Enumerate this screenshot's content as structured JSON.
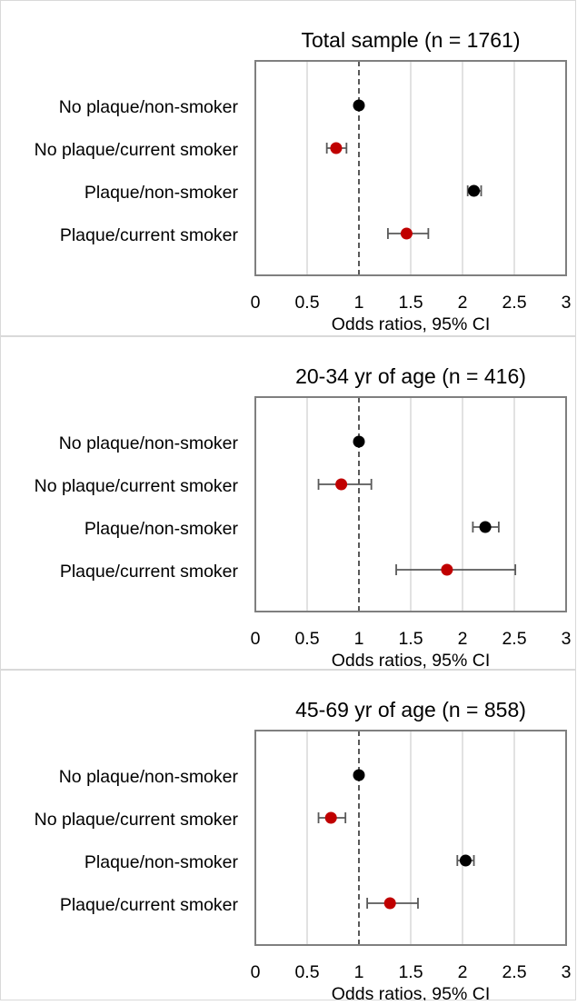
{
  "chart_data": [
    {
      "type": "scatter",
      "title": "Total sample (n = 1761)",
      "xlabel": "Odds ratios, 95% CI",
      "xlim": [
        0,
        3
      ],
      "xticks": [
        "0",
        "0.5",
        "1",
        "1.5",
        "2",
        "2.5",
        "3"
      ],
      "reference_line": 1,
      "grid": true,
      "rows": [
        {
          "label": "No plaque/non-smoker",
          "or": 1.0,
          "ci_low": 1.0,
          "ci_high": 1.0,
          "color": "#000000"
        },
        {
          "label": "No plaque/current smoker",
          "or": 0.78,
          "ci_low": 0.69,
          "ci_high": 0.88,
          "color": "#c00000"
        },
        {
          "label": "Plaque/non-smoker",
          "or": 2.11,
          "ci_low": 2.05,
          "ci_high": 2.18,
          "color": "#000000"
        },
        {
          "label": "Plaque/current smoker",
          "or": 1.46,
          "ci_low": 1.28,
          "ci_high": 1.67,
          "color": "#c00000"
        }
      ]
    },
    {
      "type": "scatter",
      "title": "20-34 yr of age (n = 416)",
      "xlabel": "Odds ratios, 95% CI",
      "xlim": [
        0,
        3
      ],
      "xticks": [
        "0",
        "0.5",
        "1",
        "1.5",
        "2",
        "2.5",
        "3"
      ],
      "reference_line": 1,
      "grid": true,
      "rows": [
        {
          "label": "No plaque/non-smoker",
          "or": 1.0,
          "ci_low": 1.0,
          "ci_high": 1.0,
          "color": "#000000"
        },
        {
          "label": "No plaque/current smoker",
          "or": 0.83,
          "ci_low": 0.61,
          "ci_high": 1.12,
          "color": "#c00000"
        },
        {
          "label": "Plaque/non-smoker",
          "or": 2.22,
          "ci_low": 2.1,
          "ci_high": 2.35,
          "color": "#000000"
        },
        {
          "label": "Plaque/current smoker",
          "or": 1.85,
          "ci_low": 1.36,
          "ci_high": 2.51,
          "color": "#c00000"
        }
      ]
    },
    {
      "type": "scatter",
      "title": "45-69 yr of age (n = 858)",
      "xlabel": "Odds ratios, 95% CI",
      "xlim": [
        0,
        3
      ],
      "xticks": [
        "0",
        "0.5",
        "1",
        "1.5",
        "2",
        "2.5",
        "3"
      ],
      "reference_line": 1,
      "grid": true,
      "rows": [
        {
          "label": "No plaque/non-smoker",
          "or": 1.0,
          "ci_low": 1.0,
          "ci_high": 1.0,
          "color": "#000000"
        },
        {
          "label": "No plaque/current smoker",
          "or": 0.73,
          "ci_low": 0.61,
          "ci_high": 0.87,
          "color": "#c00000"
        },
        {
          "label": "Plaque/non-smoker",
          "or": 2.03,
          "ci_low": 1.95,
          "ci_high": 2.11,
          "color": "#000000"
        },
        {
          "label": "Plaque/current smoker",
          "or": 1.3,
          "ci_low": 1.08,
          "ci_high": 1.57,
          "color": "#c00000"
        }
      ]
    }
  ],
  "colors": {
    "frame": "#7f7f7f",
    "grid": "#d9d9d9",
    "reference_line": "#595959",
    "errorbar": "#595959",
    "panel_border": "#d9d9d9"
  }
}
